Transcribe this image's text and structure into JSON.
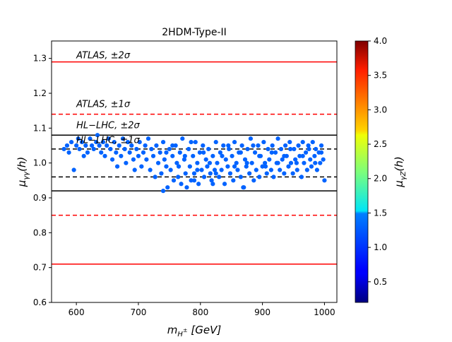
{
  "chart_data": {
    "type": "scatter",
    "title": "2HDM-Type-II",
    "xlabel": "m_{H±} [GeV]",
    "ylabel": "μ_{γγ}(h)",
    "xlim": [
      560,
      1020
    ],
    "ylim": [
      0.6,
      1.35
    ],
    "xticks": [
      600,
      700,
      800,
      900,
      1000
    ],
    "yticks": [
      0.6,
      0.7,
      0.8,
      0.9,
      1.0,
      1.1,
      1.2,
      1.3
    ],
    "reference_lines": [
      {
        "name": "ATLAS ±2σ upper",
        "y": 1.29,
        "color": "#ff0000",
        "style": "solid"
      },
      {
        "name": "ATLAS ±2σ lower",
        "y": 0.71,
        "color": "#ff0000",
        "style": "solid"
      },
      {
        "name": "ATLAS ±1σ upper",
        "y": 1.14,
        "color": "#ff0000",
        "style": "dashed"
      },
      {
        "name": "ATLAS ±1σ lower",
        "y": 0.85,
        "color": "#ff0000",
        "style": "dashed"
      },
      {
        "name": "HL-LHC ±2σ upper",
        "y": 1.08,
        "color": "#000000",
        "style": "solid"
      },
      {
        "name": "HL-LHC ±2σ lower",
        "y": 0.92,
        "color": "#000000",
        "style": "solid"
      },
      {
        "name": "HL-LHC ±1σ upper",
        "y": 1.04,
        "color": "#000000",
        "style": "dashed"
      },
      {
        "name": "HL-LHC ±1σ lower",
        "y": 0.96,
        "color": "#000000",
        "style": "dashed"
      }
    ],
    "annotations": [
      {
        "text": "ATLAS, ±2σ",
        "x": 600,
        "y": 1.3
      },
      {
        "text": "ATLAS, ±1σ",
        "x": 600,
        "y": 1.16
      },
      {
        "text": "HL−LHC, ±2σ",
        "x": 600,
        "y": 1.1
      },
      {
        "text": "HL−LHC, ±1σ",
        "x": 600,
        "y": 1.057
      }
    ],
    "colorbar": {
      "label": "μ_{γZ}(h)",
      "range": [
        0.2,
        4.0
      ],
      "ticks": [
        0.5,
        1.0,
        1.5,
        2.0,
        2.5,
        3.0,
        3.5,
        4.0
      ],
      "colormap": "jet"
    },
    "scatter": {
      "color_value": 1.0,
      "point_color": "#0063ff",
      "points": [
        [
          580,
          1.04
        ],
        [
          585,
          1.05
        ],
        [
          588,
          1.03
        ],
        [
          592,
          1.06
        ],
        [
          596,
          0.98
        ],
        [
          600,
          1.05
        ],
        [
          603,
          1.07
        ],
        [
          605,
          1.04
        ],
        [
          609,
          1.06
        ],
        [
          612,
          1.02
        ],
        [
          615,
          1.05
        ],
        [
          618,
          1.03
        ],
        [
          622,
          1.07
        ],
        [
          625,
          1.05
        ],
        [
          628,
          1.04
        ],
        [
          632,
          1.06
        ],
        [
          634,
          1.08
        ],
        [
          637,
          1.05
        ],
        [
          640,
          1.03
        ],
        [
          643,
          1.06
        ],
        [
          646,
          1.02
        ],
        [
          649,
          1.05
        ],
        [
          652,
          1.07
        ],
        [
          655,
          1.04
        ],
        [
          658,
          1.01
        ],
        [
          661,
          1.06
        ],
        [
          664,
          1.03
        ],
        [
          666,
          0.99
        ],
        [
          669,
          1.05
        ],
        [
          672,
          1.02
        ],
        [
          675,
          1.07
        ],
        [
          678,
          1.04
        ],
        [
          680,
          1.0
        ],
        [
          683,
          1.06
        ],
        [
          686,
          1.03
        ],
        [
          689,
          1.05
        ],
        [
          692,
          1.01
        ],
        [
          694,
          0.98
        ],
        [
          697,
          1.04
        ],
        [
          700,
          1.02
        ],
        [
          702,
          1.06
        ],
        [
          705,
          0.99
        ],
        [
          708,
          1.03
        ],
        [
          711,
          1.05
        ],
        [
          713,
          1.01
        ],
        [
          716,
          1.07
        ],
        [
          719,
          0.98
        ],
        [
          721,
          1.04
        ],
        [
          724,
          1.02
        ],
        [
          727,
          0.96
        ],
        [
          729,
          1.05
        ],
        [
          732,
          1.0
        ],
        [
          735,
          1.03
        ],
        [
          737,
          0.97
        ],
        [
          740,
          1.06
        ],
        [
          742,
          1.01
        ],
        [
          745,
          0.99
        ],
        [
          747,
          0.93
        ],
        [
          750,
          1.04
        ],
        [
          752,
          0.98
        ],
        [
          755,
          1.02
        ],
        [
          757,
          0.95
        ],
        [
          760,
          1.05
        ],
        [
          762,
          1.0
        ],
        [
          764,
          0.96
        ],
        [
          767,
          1.03
        ],
        [
          769,
          0.94
        ],
        [
          771,
          1.07
        ],
        [
          774,
          1.01
        ],
        [
          776,
          0.97
        ],
        [
          778,
          0.93
        ],
        [
          781,
          1.04
        ],
        [
          783,
          0.99
        ],
        [
          785,
          0.95
        ],
        [
          788,
          1.02
        ],
        [
          790,
          0.97
        ],
        [
          792,
          1.06
        ],
        [
          795,
          1.0
        ],
        [
          797,
          0.94
        ],
        [
          799,
          1.03
        ],
        [
          802,
          0.98
        ],
        [
          804,
          1.05
        ],
        [
          806,
          0.96
        ],
        [
          809,
          1.01
        ],
        [
          811,
          0.99
        ],
        [
          813,
          1.04
        ],
        [
          816,
          0.97
        ],
        [
          818,
          0.95
        ],
        [
          820,
          1.02
        ],
        [
          823,
          0.98
        ],
        [
          825,
          1.06
        ],
        [
          827,
          1.0
        ],
        [
          830,
          0.96
        ],
        [
          832,
          1.03
        ],
        [
          834,
          0.98
        ],
        [
          837,
          1.05
        ],
        [
          839,
          0.94
        ],
        [
          841,
          1.01
        ],
        [
          844,
          0.99
        ],
        [
          846,
          1.04
        ],
        [
          848,
          0.97
        ],
        [
          851,
          1.02
        ],
        [
          853,
          0.95
        ],
        [
          855,
          1.06
        ],
        [
          858,
          1.0
        ],
        [
          860,
          0.98
        ],
        [
          862,
          1.03
        ],
        [
          865,
          0.96
        ],
        [
          867,
          1.05
        ],
        [
          869,
          0.93
        ],
        [
          872,
          1.01
        ],
        [
          874,
          0.99
        ],
        [
          876,
          1.04
        ],
        [
          879,
          0.97
        ],
        [
          881,
          1.07
        ],
        [
          883,
          1.0
        ],
        [
          886,
          0.95
        ],
        [
          888,
          1.03
        ],
        [
          890,
          0.98
        ],
        [
          893,
          1.05
        ],
        [
          895,
          0.96
        ],
        [
          897,
          1.02
        ],
        [
          900,
          0.99
        ],
        [
          902,
          1.06
        ],
        [
          904,
          1.0
        ],
        [
          907,
          0.97
        ],
        [
          909,
          1.04
        ],
        [
          911,
          1.01
        ],
        [
          914,
          0.98
        ],
        [
          916,
          1.05
        ],
        [
          918,
          0.96
        ],
        [
          921,
          1.03
        ],
        [
          923,
          1.0
        ],
        [
          925,
          1.07
        ],
        [
          928,
          0.98
        ],
        [
          930,
          1.04
        ],
        [
          932,
          1.01
        ],
        [
          935,
          0.97
        ],
        [
          937,
          1.05
        ],
        [
          939,
          1.02
        ],
        [
          942,
          0.99
        ],
        [
          944,
          1.06
        ],
        [
          946,
          1.0
        ],
        [
          949,
          0.97
        ],
        [
          951,
          1.04
        ],
        [
          953,
          1.01
        ],
        [
          956,
          0.98
        ],
        [
          958,
          1.05
        ],
        [
          960,
          1.02
        ],
        [
          963,
          0.96
        ],
        [
          965,
          1.06
        ],
        [
          967,
          1.0
        ],
        [
          970,
          1.03
        ],
        [
          972,
          0.98
        ],
        [
          974,
          1.05
        ],
        [
          977,
          1.01
        ],
        [
          979,
          0.99
        ],
        [
          981,
          1.06
        ],
        [
          984,
          1.02
        ],
        [
          986,
          1.04
        ],
        [
          988,
          0.98
        ],
        [
          991,
          1.03
        ],
        [
          993,
          1.0
        ],
        [
          995,
          1.05
        ],
        [
          998,
          1.01
        ],
        [
          1000,
          0.95
        ],
        [
          745,
          1.03
        ],
        [
          755,
          1.05
        ],
        [
          765,
          0.99
        ],
        [
          775,
          1.02
        ],
        [
          785,
          1.06
        ],
        [
          795,
          0.98
        ],
        [
          805,
          1.03
        ],
        [
          815,
          1.0
        ],
        [
          825,
          0.97
        ],
        [
          835,
          1.02
        ],
        [
          845,
          1.05
        ],
        [
          855,
          0.99
        ],
        [
          865,
          1.03
        ],
        [
          875,
          1.0
        ],
        [
          885,
          1.05
        ],
        [
          895,
          1.02
        ],
        [
          905,
          0.99
        ],
        [
          915,
          1.03
        ],
        [
          925,
          1.0
        ],
        [
          935,
          1.02
        ],
        [
          945,
          1.04
        ],
        [
          955,
          1.0
        ],
        [
          965,
          1.02
        ],
        [
          975,
          1.04
        ],
        [
          985,
          1.0
        ],
        [
          995,
          1.03
        ],
        [
          740,
          0.92
        ],
        [
          870,
          0.93
        ],
        [
          790,
          0.95
        ],
        [
          820,
          0.94
        ]
      ]
    }
  }
}
